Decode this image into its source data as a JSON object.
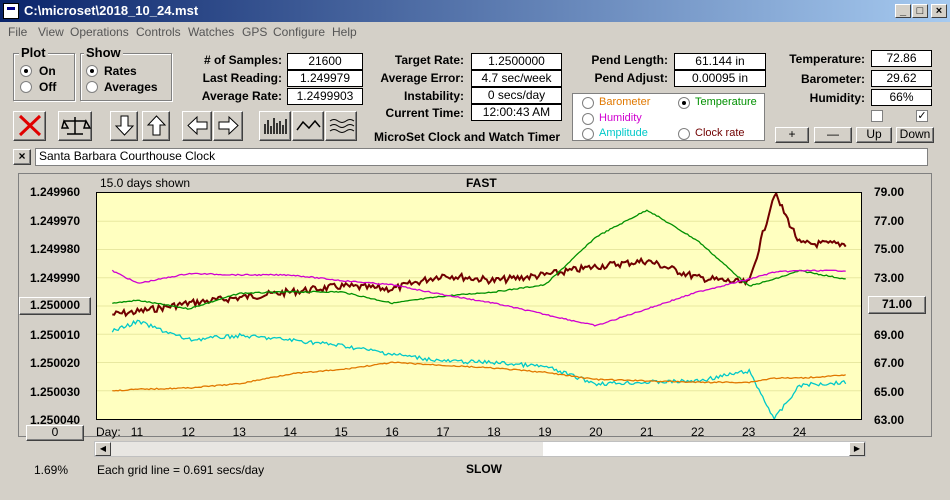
{
  "window": {
    "title": "C:\\microset\\2018_10_24.mst"
  },
  "menu": [
    "File",
    "View",
    "Operations",
    "Controls",
    "Watches",
    "GPS",
    "Configure",
    "Help"
  ],
  "plot_group": {
    "label": "Plot",
    "on_label": "On",
    "off_label": "Off",
    "selected": "On"
  },
  "show_group": {
    "label": "Show",
    "rates_label": "Rates",
    "averages_label": "Averages",
    "selected": "Rates"
  },
  "stats": {
    "samples_label": "# of Samples:",
    "samples": "21600",
    "last_label": "Last Reading:",
    "last": "1.249979",
    "avg_label": "Average Rate:",
    "avg": "1.2499903"
  },
  "rates": {
    "target_label": "Target Rate:",
    "target": "1.2500000",
    "avg_err_label": "Average Error:",
    "avg_err": "4.7 sec/week",
    "instab_label": "Instability:",
    "instab": "0 secs/day",
    "time_label": "Current Time:",
    "time": "12:00:43 AM"
  },
  "app_caption": "MicroSet Clock and Watch Timer",
  "pend": {
    "length_label": "Pend Length:",
    "length": "61.144 in",
    "adjust_label": "Pend Adjust:",
    "adjust": "0.00095 in"
  },
  "channels": {
    "barometer": "Barometer",
    "humidity": "Humidity",
    "amplitude": "Amplitude",
    "temperature": "Temperature",
    "clock_rate": "Clock rate",
    "selected": "Temperature",
    "colors": {
      "barometer": "#e07800",
      "humidity": "#d000d0",
      "amplitude": "#00c8c8",
      "temperature": "#009000",
      "clock_rate": "#700000"
    }
  },
  "env": {
    "temp_label": "Temperature:",
    "temp": "72.86",
    "baro_label": "Barometer:",
    "baro": "29.62",
    "hum_label": "Humidity:",
    "hum": "66%",
    "check1": false,
    "check2": true
  },
  "adj_buttons": {
    "plus": "+",
    "minus": "—",
    "up": "Up",
    "down": "Down"
  },
  "watch": {
    "close": "×",
    "name": "Santa Barbara Courthouse Clock"
  },
  "chart_labels": {
    "days_shown": "15.0 days shown",
    "fast": "FAST",
    "slow": "SLOW",
    "grid_note": "Each grid line = 0.691 secs/day",
    "day_label": "Day:",
    "left_value": "1.250000",
    "right_value": "71.00",
    "bottom_left": "0",
    "percent": "1.69%"
  },
  "chart_data": {
    "type": "line",
    "x": [
      10.5,
      11,
      12,
      13,
      14,
      15,
      16,
      17,
      18,
      19,
      20,
      21,
      22,
      23,
      23.5,
      24,
      24.9
    ],
    "x_ticks": [
      "11",
      "12",
      "13",
      "14",
      "15",
      "16",
      "17",
      "18",
      "19",
      "20",
      "21",
      "22",
      "23",
      "24"
    ],
    "y_left_ticks": [
      "1.249960",
      "1.249970",
      "1.249980",
      "1.249990",
      "1.250000",
      "1.250010",
      "1.250020",
      "1.250030",
      "1.250040"
    ],
    "y_left_range": [
      1.24996,
      1.25004
    ],
    "y_right_ticks": [
      "79.00",
      "77.00",
      "75.00",
      "73.00",
      "71.00",
      "69.00",
      "67.00",
      "65.00",
      "63.00"
    ],
    "y_right_range": [
      63,
      79
    ],
    "series": [
      {
        "name": "Clock rate",
        "color": "#700000",
        "axis": "left",
        "values": [
          1.250003,
          1.250002,
          1.249999,
          1.249997,
          1.249995,
          1.249993,
          1.249994,
          1.249989,
          1.249991,
          1.249989,
          1.249986,
          1.249984,
          1.24999,
          1.249992,
          1.24996,
          1.249978,
          1.249978
        ]
      },
      {
        "name": "Temperature",
        "color": "#009000",
        "axis": "right",
        "values": [
          71.2,
          71.4,
          70.8,
          71.9,
          72.0,
          72.0,
          71.2,
          71.7,
          72.0,
          72.5,
          75.9,
          77.8,
          75.6,
          72.4,
          72.9,
          73.5,
          72.9
        ]
      },
      {
        "name": "Humidity",
        "color": "#d000d0",
        "axis": "right",
        "values": [
          73.5,
          72.6,
          73.3,
          73.2,
          73.2,
          72.8,
          72.5,
          71.8,
          71.2,
          70.4,
          69.6,
          70.8,
          72.0,
          72.9,
          73.4,
          73.5,
          73.5
        ]
      },
      {
        "name": "Amplitude",
        "color": "#00c8c8",
        "axis": "right",
        "values": [
          69.2,
          69.9,
          68.6,
          68.9,
          68.6,
          68.2,
          67.6,
          67.1,
          67.0,
          66.7,
          65.5,
          65.6,
          65.7,
          66.4,
          63.0,
          65.4,
          65.6
        ]
      },
      {
        "name": "Barometer",
        "color": "#e07800",
        "axis": "right",
        "values": [
          65.0,
          65.1,
          65.2,
          65.5,
          66.2,
          66.5,
          67.0,
          66.8,
          66.6,
          66.3,
          65.8,
          65.7,
          65.6,
          65.6,
          65.9,
          65.9,
          66.1
        ]
      }
    ]
  }
}
